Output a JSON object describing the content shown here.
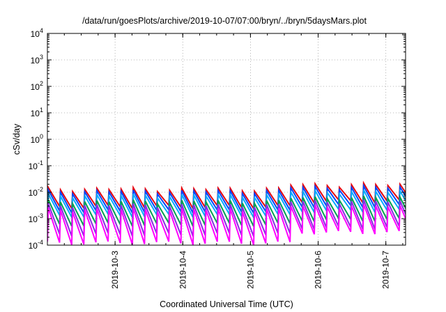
{
  "chart_data": {
    "type": "line",
    "title": "/data/run/goesPlots/archive/2019-10-07/07:00/bryn/../bryn/5daysMars.plot",
    "xlabel": "Coordinated Universal Time (UTC)",
    "ylabel": "cSv/day",
    "yscale": "log",
    "ylim": [
      0.0001,
      10000
    ],
    "xlim": [
      "2019-10-02T00:00",
      "2019-10-07T07:00"
    ],
    "grid": true,
    "legend": "none",
    "x_ticks": [
      "2019-10-3",
      "2019-10-4",
      "2019-10-5",
      "2019-10-6",
      "2019-10-7"
    ],
    "y_ticks": [
      {
        "value": 0.0001,
        "base": "10",
        "exp": "-4"
      },
      {
        "value": 0.001,
        "base": "10",
        "exp": "-3"
      },
      {
        "value": 0.01,
        "base": "10",
        "exp": "-2"
      },
      {
        "value": 0.1,
        "base": "10",
        "exp": "-1"
      },
      {
        "value": 1,
        "base": "10",
        "exp": "0"
      },
      {
        "value": 10,
        "base": "10",
        "exp": "1"
      },
      {
        "value": 100,
        "base": "10",
        "exp": "2"
      },
      {
        "value": 1000,
        "base": "10",
        "exp": "3"
      },
      {
        "value": 10000,
        "base": "10",
        "exp": "4"
      }
    ],
    "pattern": {
      "sawtooth_period_hours": 4.3,
      "first_peak": "2019-10-02T00:20"
    },
    "series": [
      {
        "color": "#e8000b",
        "peak": 0.013,
        "trough": 0.0028,
        "peak_late": 0.019,
        "trough_late": 0.0045
      },
      {
        "color": "#0044ff",
        "peak": 0.0105,
        "trough": 0.0019,
        "peak_late": 0.015,
        "trough_late": 0.003
      },
      {
        "color": "#00aaff",
        "peak": 0.0075,
        "trough": 0.0013,
        "peak_late": 0.0105,
        "trough_late": 0.002
      },
      {
        "color": "#00a050",
        "peak": 0.0045,
        "trough": 0.0006,
        "peak_late": 0.0062,
        "trough_late": 0.0009
      },
      {
        "color": "#8a2be2",
        "peak": 0.0032,
        "trough": 0.00025,
        "peak_late": 0.0045,
        "trough_late": 0.00045
      },
      {
        "color": "#ff00ff",
        "peak": 0.0022,
        "trough": 0.00012,
        "peak_late": 0.003,
        "trough_late": 0.0003
      }
    ]
  }
}
